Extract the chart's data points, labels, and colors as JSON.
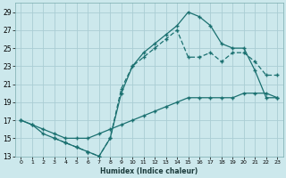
{
  "xlabel": "Humidex (Indice chaleur)",
  "bg_color": "#cce8ec",
  "grid_color": "#aacdd4",
  "line_color": "#1a7070",
  "xlim": [
    -0.5,
    23.5
  ],
  "ylim": [
    13,
    30
  ],
  "xticks": [
    0,
    1,
    2,
    3,
    4,
    5,
    6,
    7,
    8,
    9,
    10,
    11,
    12,
    13,
    14,
    15,
    16,
    17,
    18,
    19,
    20,
    21,
    22,
    23
  ],
  "yticks": [
    13,
    15,
    17,
    19,
    21,
    23,
    25,
    27,
    29
  ],
  "line1_x": [
    0,
    1,
    2,
    3,
    4,
    5,
    6,
    7,
    8,
    9,
    10,
    11,
    12,
    13,
    14,
    15,
    16,
    17,
    18,
    19,
    20,
    21,
    22,
    23
  ],
  "line1_y": [
    17,
    16.5,
    15.5,
    15.0,
    14.5,
    14.0,
    13.5,
    13.0,
    15.0,
    20.0,
    23.0,
    24.5,
    25.5,
    26.5,
    27.5,
    29.0,
    28.5,
    27.5,
    25.5,
    25.0,
    25.0,
    22.5,
    19.5,
    19.5
  ],
  "line2_x": [
    0,
    1,
    2,
    3,
    4,
    5,
    6,
    7,
    8,
    9,
    10,
    11,
    12,
    13,
    14,
    15,
    16,
    17,
    18,
    19,
    20,
    21,
    22,
    23
  ],
  "line2_y": [
    17.0,
    16.5,
    16.0,
    15.5,
    15.0,
    15.0,
    15.0,
    15.5,
    16.0,
    16.5,
    17.0,
    17.5,
    18.0,
    18.5,
    19.0,
    19.5,
    19.5,
    19.5,
    19.5,
    19.5,
    20.0,
    20.0,
    20.0,
    19.5
  ],
  "line3_x": [
    3,
    4,
    5,
    6,
    7,
    8,
    9,
    10,
    11,
    12,
    13,
    14,
    15,
    16,
    17,
    18,
    19,
    20,
    21,
    22,
    23
  ],
  "line3_y": [
    15.0,
    14.5,
    14.0,
    13.5,
    13.0,
    15.0,
    20.5,
    23.0,
    24.0,
    25.0,
    26.0,
    27.0,
    24.0,
    24.0,
    24.5,
    23.5,
    24.5,
    24.5,
    23.5,
    22.0,
    22.0
  ]
}
